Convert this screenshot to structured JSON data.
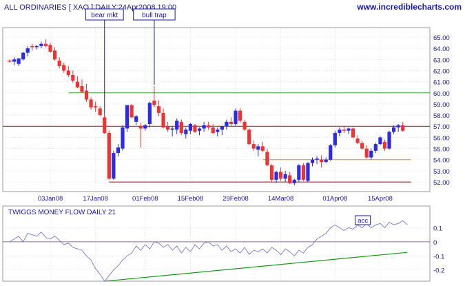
{
  "header": {
    "title": "ALL ORDINARIES [ XAO ]:DAILY:24Apr2008 19:00",
    "brand": "www.incrediblecharts.com"
  },
  "colors": {
    "up": "#2a2ae8",
    "down": "#ee3333",
    "brand": "#1a1a9a",
    "resistance_line": "#2a9a2a",
    "support_line": "#8b1a1a",
    "orange_line": "#e08a1a",
    "twiggs_line": "#7777cc",
    "trend_line": "#1a9a1a",
    "grid": "#cfcfcf",
    "annotation_box": "#ffffff"
  },
  "chart_data": [
    {
      "type": "candlestick",
      "title": "ALL ORDINARIES [ XAO ]:DAILY:24Apr2008 19:00",
      "ylim": [
        51.2,
        65.8
      ],
      "yticks": [
        "65.00",
        "64.00",
        "63.00",
        "62.00",
        "61.00",
        "60.00",
        "59.00",
        "58.00",
        "57.00",
        "56.00",
        "55.00",
        "54.00",
        "53.00",
        "52.00"
      ],
      "xtick_labels": [
        "03Jan08",
        "17Jan08",
        "01Feb08",
        "15Feb08",
        "29Feb08",
        "14Mar08",
        "01Apr08",
        "15Apr08"
      ],
      "xtick_index": [
        9,
        19,
        30,
        40,
        50,
        60,
        72,
        82
      ],
      "candles": [
        [
          62.9,
          63.0,
          62.7,
          62.8
        ],
        [
          62.8,
          63.2,
          62.5,
          63.0
        ],
        [
          62.6,
          63.1,
          62.4,
          63.1
        ],
        [
          63.0,
          63.7,
          62.9,
          63.6
        ],
        [
          63.6,
          64.2,
          63.3,
          64.0
        ],
        [
          64.2,
          64.4,
          63.8,
          64.1
        ],
        [
          64.1,
          64.3,
          63.9,
          64.2
        ],
        [
          64.2,
          64.6,
          64.0,
          64.4
        ],
        [
          64.4,
          64.8,
          64.1,
          64.2
        ],
        [
          64.3,
          64.5,
          63.6,
          63.7
        ],
        [
          63.8,
          64.1,
          62.9,
          63.0
        ],
        [
          62.9,
          63.2,
          62.2,
          62.4
        ],
        [
          62.5,
          62.7,
          61.8,
          62.0
        ],
        [
          62.0,
          62.4,
          61.4,
          61.6
        ],
        [
          61.6,
          62.0,
          60.9,
          61.1
        ],
        [
          61.0,
          61.5,
          60.4,
          60.5
        ],
        [
          60.6,
          61.2,
          60.0,
          60.1
        ],
        [
          60.2,
          60.8,
          59.2,
          59.4
        ],
        [
          59.4,
          59.6,
          58.5,
          58.7
        ],
        [
          58.8,
          59.2,
          58.3,
          58.7
        ],
        [
          58.6,
          58.8,
          57.9,
          58.0
        ],
        [
          57.8,
          58.2,
          56.3,
          56.4
        ],
        [
          56.4,
          56.6,
          52.2,
          52.3
        ],
        [
          52.3,
          54.8,
          52.2,
          54.6
        ],
        [
          54.6,
          55.4,
          54.3,
          55.1
        ],
        [
          55.0,
          57.1,
          54.8,
          56.9
        ],
        [
          56.8,
          58.9,
          56.5,
          58.9
        ],
        [
          58.9,
          59.0,
          57.7,
          57.8
        ],
        [
          57.4,
          58.0,
          57.1,
          57.9
        ],
        [
          57.0,
          57.3,
          55.1,
          56.8
        ],
        [
          56.8,
          57.2,
          56.6,
          57.1
        ],
        [
          57.2,
          59.2,
          56.9,
          59.1
        ],
        [
          59.3,
          60.6,
          58.7,
          58.9
        ],
        [
          58.8,
          59.3,
          57.9,
          58.2
        ],
        [
          58.2,
          58.6,
          56.8,
          56.9
        ],
        [
          57.0,
          57.4,
          56.5,
          56.7
        ],
        [
          56.7,
          57.0,
          56.1,
          56.8
        ],
        [
          56.7,
          57.7,
          56.3,
          57.5
        ],
        [
          57.4,
          57.6,
          56.2,
          56.4
        ],
        [
          56.3,
          56.9,
          55.9,
          56.7
        ],
        [
          56.6,
          57.3,
          56.3,
          57.2
        ],
        [
          57.1,
          57.2,
          56.4,
          56.5
        ],
        [
          56.6,
          56.9,
          56.2,
          56.8
        ],
        [
          56.8,
          57.4,
          56.5,
          57.1
        ],
        [
          57.1,
          57.4,
          56.7,
          56.9
        ],
        [
          56.9,
          57.2,
          56.3,
          56.4
        ],
        [
          56.5,
          56.9,
          56.1,
          56.7
        ],
        [
          56.7,
          57.0,
          56.2,
          57.0
        ],
        [
          57.0,
          57.6,
          56.7,
          57.4
        ],
        [
          57.4,
          57.8,
          57.0,
          57.2
        ],
        [
          57.2,
          58.6,
          57.0,
          58.4
        ],
        [
          58.4,
          58.6,
          57.3,
          57.5
        ],
        [
          57.4,
          57.6,
          56.6,
          56.7
        ],
        [
          56.7,
          56.8,
          55.3,
          55.4
        ],
        [
          55.4,
          55.7,
          54.8,
          55.0
        ],
        [
          54.9,
          55.4,
          54.3,
          55.2
        ],
        [
          55.2,
          55.6,
          54.7,
          54.8
        ],
        [
          54.7,
          55.0,
          53.4,
          53.5
        ],
        [
          53.5,
          53.6,
          52.0,
          52.2
        ],
        [
          52.2,
          53.0,
          51.9,
          52.9
        ],
        [
          52.9,
          53.3,
          52.1,
          52.3
        ],
        [
          52.3,
          53.0,
          52.0,
          52.7
        ],
        [
          52.6,
          52.9,
          51.8,
          51.9
        ],
        [
          51.9,
          52.3,
          51.7,
          52.2
        ],
        [
          52.2,
          53.6,
          52.0,
          53.5
        ],
        [
          53.5,
          53.7,
          52.1,
          52.2
        ],
        [
          52.1,
          53.8,
          52.0,
          53.7
        ],
        [
          53.7,
          54.2,
          53.4,
          54.0
        ],
        [
          54.0,
          54.3,
          53.6,
          54.1
        ],
        [
          54.0,
          54.4,
          53.3,
          53.8
        ],
        [
          53.8,
          54.2,
          53.7,
          54.0
        ],
        [
          54.0,
          55.4,
          53.9,
          55.3
        ],
        [
          55.3,
          56.6,
          55.1,
          56.4
        ],
        [
          56.4,
          56.9,
          56.1,
          56.7
        ],
        [
          56.7,
          57.0,
          56.4,
          56.6
        ],
        [
          56.6,
          56.9,
          56.3,
          56.8
        ],
        [
          56.8,
          56.9,
          55.9,
          56.0
        ],
        [
          55.9,
          56.2,
          55.4,
          55.5
        ],
        [
          55.5,
          55.7,
          54.9,
          55.0
        ],
        [
          55.0,
          55.3,
          54.1,
          54.2
        ],
        [
          54.2,
          55.0,
          54.0,
          54.8
        ],
        [
          54.8,
          55.5,
          54.6,
          55.4
        ],
        [
          55.4,
          56.1,
          55.3,
          56.0
        ],
        [
          55.6,
          55.8,
          54.8,
          55.0
        ],
        [
          55.0,
          56.6,
          54.9,
          56.5
        ],
        [
          56.5,
          57.1,
          56.3,
          56.9
        ],
        [
          56.9,
          57.2,
          56.5,
          57.1
        ],
        [
          57.1,
          57.4,
          56.5,
          56.6
        ]
      ],
      "horizontal_lines": [
        {
          "value": 60.0,
          "color": "resistance_line"
        },
        {
          "value": 57.0,
          "color": "support_line"
        },
        {
          "value": 54.0,
          "color": "orange_line"
        },
        {
          "value": 52.0,
          "color": "support_line"
        }
      ],
      "annotations": [
        {
          "label": "bear mkt",
          "index": 21
        },
        {
          "label": "bull trap",
          "index": 32
        }
      ]
    },
    {
      "type": "line",
      "title": "TWIGGS MONEY FLOW DAILY 21",
      "ylim": [
        -0.26,
        0.2
      ],
      "yticks": [
        "0.1",
        "0",
        "-0.1",
        "-0.2"
      ],
      "zero_line": 0,
      "values": [
        0.0,
        0.02,
        0.04,
        0.0,
        0.06,
        0.05,
        0.04,
        0.07,
        0.03,
        0.02,
        0.04,
        0.01,
        -0.02,
        -0.01,
        -0.04,
        -0.05,
        -0.06,
        -0.1,
        -0.13,
        -0.19,
        -0.23,
        -0.28,
        -0.24,
        -0.2,
        -0.17,
        -0.13,
        -0.1,
        -0.08,
        -0.03,
        -0.06,
        -0.02,
        -0.05,
        0.0,
        -0.01,
        -0.04,
        -0.02,
        -0.06,
        -0.03,
        -0.08,
        -0.04,
        -0.07,
        -0.02,
        -0.05,
        -0.01,
        0.0,
        -0.03,
        -0.02,
        -0.06,
        -0.03,
        -0.07,
        -0.05,
        -0.08,
        -0.04,
        -0.09,
        -0.06,
        -0.07,
        -0.05,
        -0.08,
        -0.04,
        -0.06,
        -0.09,
        -0.05,
        -0.07,
        -0.1,
        -0.06,
        -0.08,
        -0.04,
        -0.02,
        0.02,
        0.04,
        0.06,
        0.1,
        0.12,
        0.1,
        0.08,
        0.1,
        0.09,
        0.12,
        0.1,
        0.13,
        0.1,
        0.12,
        0.13,
        0.1,
        0.14,
        0.12,
        0.13,
        0.15,
        0.12
      ],
      "trendline": {
        "start": [
          21,
          -0.28
        ],
        "end": [
          88,
          -0.075
        ]
      },
      "annotation": {
        "label": "acc",
        "index": 78
      }
    }
  ]
}
